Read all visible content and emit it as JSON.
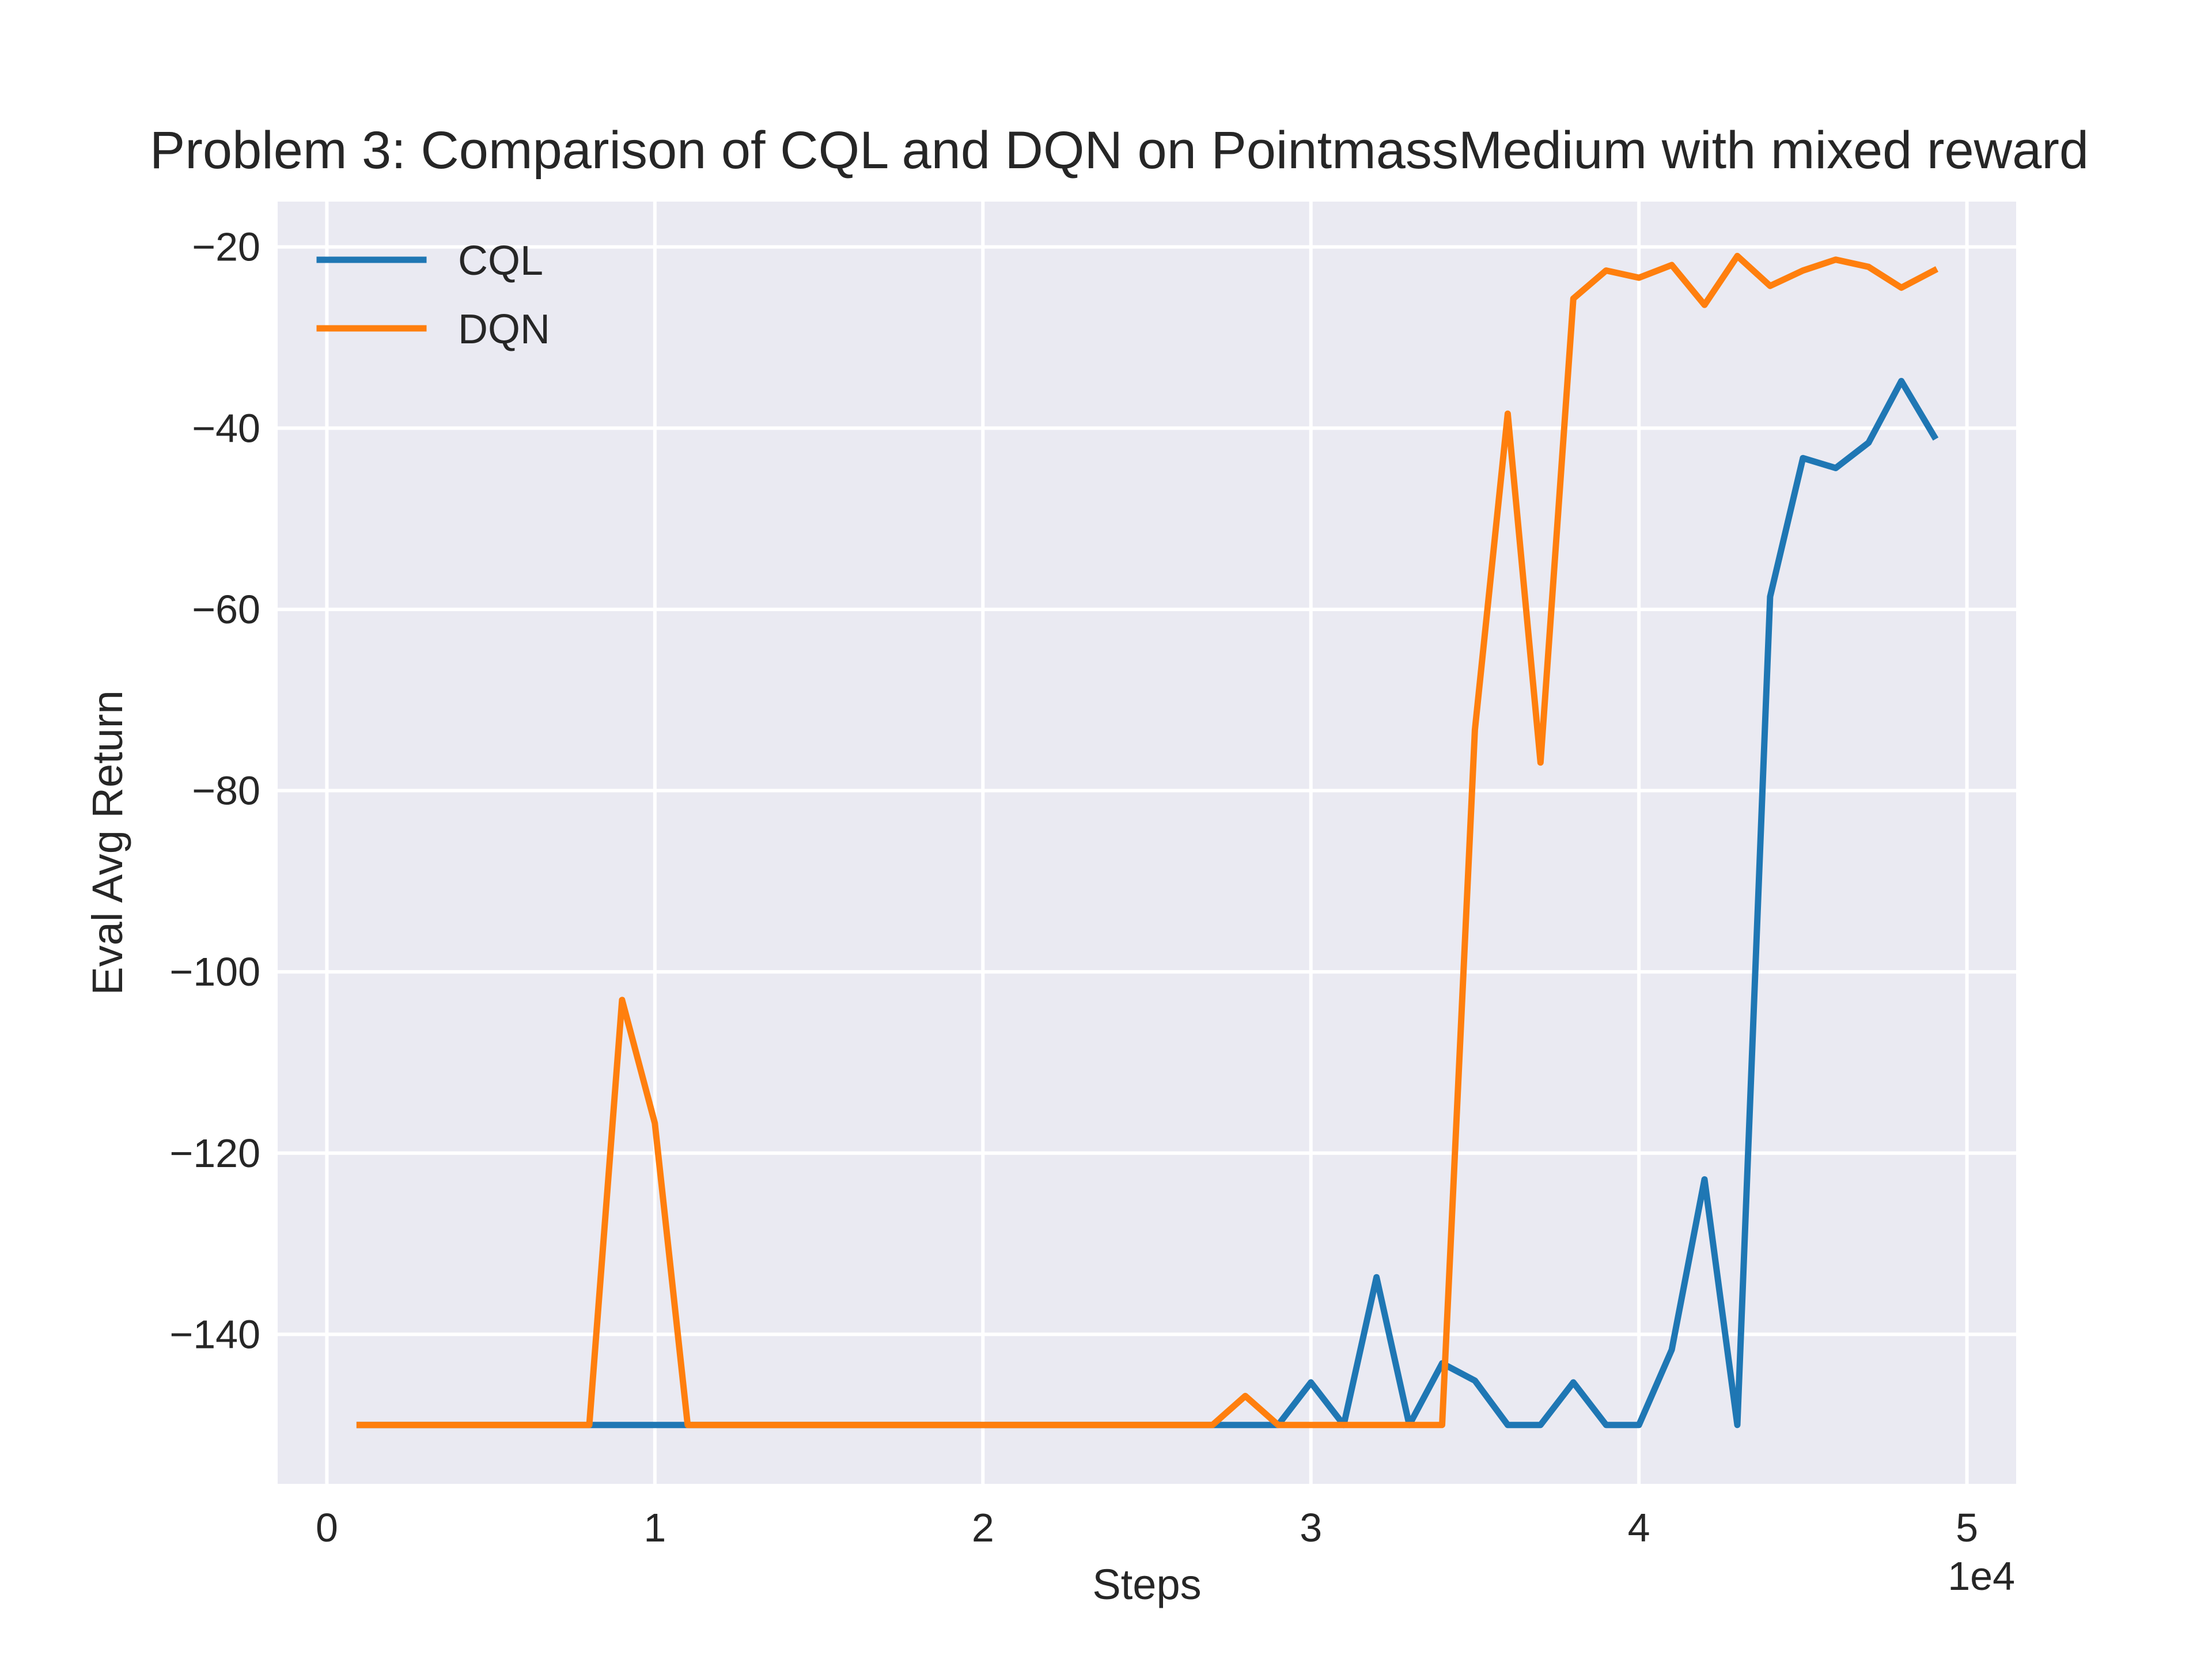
{
  "chart_data": {
    "type": "line",
    "title": "Problem 3: Comparison of CQL and DQN on PointmassMedium with mixed reward",
    "xlabel": "Steps",
    "ylabel": "Eval Avg Return",
    "x_offset_label": "1e4",
    "xlim": [
      -0.15,
      5.15
    ],
    "ylim": [
      -156.5,
      -15
    ],
    "xticks": [
      0,
      1,
      2,
      3,
      4,
      5
    ],
    "xtick_labels": [
      "0",
      "1",
      "2",
      "3",
      "4",
      "5"
    ],
    "yticks": [
      -140,
      -120,
      -100,
      -80,
      -60,
      -40,
      -20
    ],
    "ytick_labels": [
      "−140",
      "−120",
      "−100",
      "−80",
      "−60",
      "−40",
      "−20"
    ],
    "x": [
      0.1,
      0.2,
      0.3,
      0.4,
      0.5,
      0.6,
      0.7,
      0.8,
      0.9,
      1.0,
      1.1,
      1.2,
      1.3,
      1.4,
      1.5,
      1.6,
      1.7,
      1.8,
      1.9,
      2.0,
      2.1,
      2.2,
      2.3,
      2.4,
      2.5,
      2.6,
      2.7,
      2.8,
      2.9,
      3.0,
      3.1,
      3.2,
      3.3,
      3.4,
      3.5,
      3.6,
      3.7,
      3.8,
      3.9,
      4.0,
      4.1,
      4.2,
      4.3,
      4.4,
      4.5,
      4.6,
      4.7,
      4.8,
      4.9
    ],
    "grid": true,
    "legend_position": "upper-left",
    "series": [
      {
        "name": "CQL",
        "color": "#1f77b4",
        "values": [
          -150,
          -150,
          -150,
          -150,
          -150,
          -150,
          -150,
          -150,
          -150,
          -150,
          -150,
          -150,
          -150,
          -150,
          -150,
          -150,
          -150,
          -150,
          -150,
          -150,
          -150,
          -150,
          -150,
          -150,
          -150,
          -150,
          -150,
          -150,
          -150,
          -145.3,
          -150,
          -133.7,
          -150,
          -143.2,
          -145.1,
          -150,
          -150,
          -145.3,
          -150,
          -150,
          -141.7,
          -122.9,
          -150,
          -58.6,
          -43.3,
          -44.4,
          -41.6,
          -34.8,
          -40.9
        ]
      },
      {
        "name": "DQN",
        "color": "#ff7f0e",
        "values": [
          -150,
          -150,
          -150,
          -150,
          -150,
          -150,
          -150,
          -150,
          -103.1,
          -116.7,
          -150,
          -150,
          -150,
          -150,
          -150,
          -150,
          -150,
          -150,
          -150,
          -150,
          -150,
          -150,
          -150,
          -150,
          -150,
          -150,
          -150,
          -146.8,
          -150,
          -150,
          -150,
          -150,
          -150,
          -150,
          -73.3,
          -38.4,
          -76.9,
          -25.7,
          -22.6,
          -23.4,
          -22.0,
          -26.4,
          -21.0,
          -24.3,
          -22.6,
          -21.4,
          -22.2,
          -24.5,
          -22.6
        ]
      }
    ]
  }
}
